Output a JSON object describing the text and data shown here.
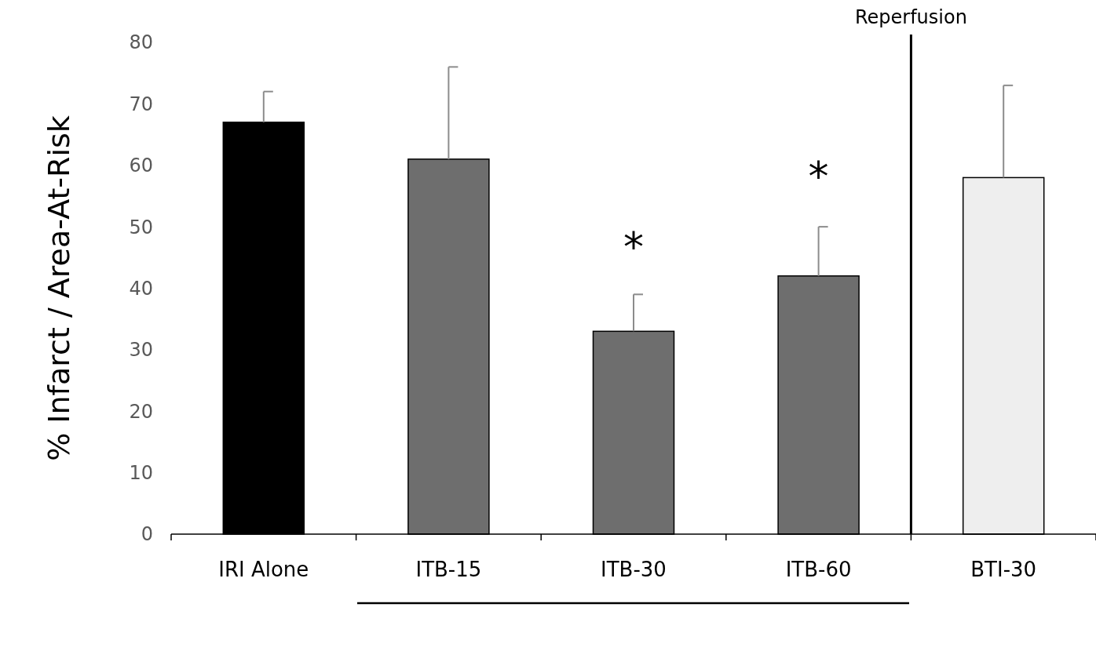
{
  "chart_data": {
    "type": "bar",
    "ylabel": "% Infarct / Area-At-Risk",
    "categories": [
      "IRI Alone",
      "ITB-15",
      "ITB-30",
      "ITB-60",
      "BTI-30"
    ],
    "values": [
      67,
      61,
      33,
      42,
      58
    ],
    "colors": [
      "#000000",
      "#6e6e6e",
      "#6e6e6e",
      "#6e6e6e",
      "#eeeeee"
    ],
    "errors": [
      [
        67,
        72
      ],
      [
        61,
        76
      ],
      [
        33,
        39
      ],
      [
        42,
        50
      ],
      [
        58,
        73
      ]
    ],
    "ylim": [
      0,
      80
    ],
    "yticks": [
      0,
      10,
      20,
      30,
      40,
      50,
      60,
      70,
      80
    ],
    "grid": false,
    "annotations": [
      "Reperfusion",
      "*",
      "*"
    ]
  }
}
